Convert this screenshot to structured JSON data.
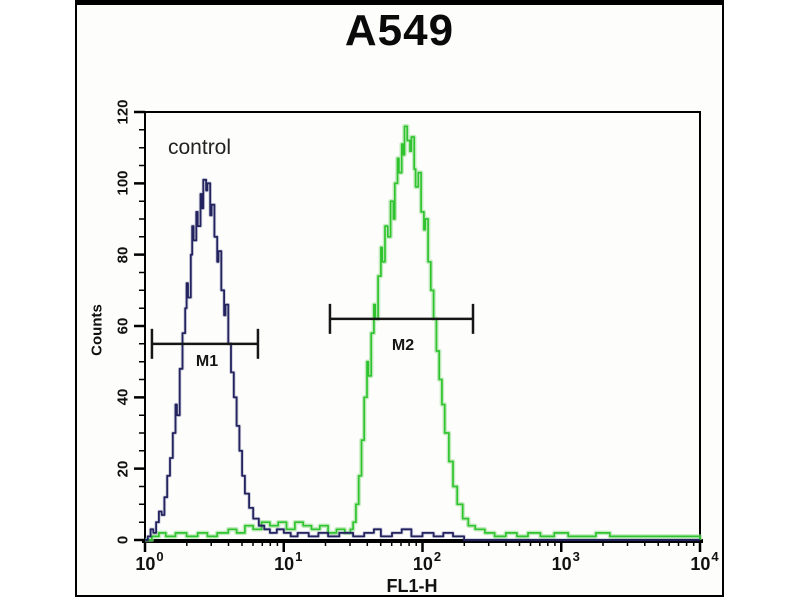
{
  "page": {
    "title": "A549"
  },
  "annotations": {
    "control_label": "control"
  },
  "axes": {
    "x": {
      "label": "FL1-H",
      "scale": "log",
      "tick_base": "10",
      "tick_exponents": [
        0,
        1,
        2,
        3,
        4
      ],
      "min_exp": 0,
      "max_exp": 4
    },
    "y": {
      "label": "Counts",
      "min": 0,
      "max": 120,
      "major_step": 20,
      "minor_step": 5,
      "tick_values": [
        0,
        20,
        40,
        60,
        80,
        100,
        120
      ],
      "tick_labels": [
        "0",
        "20",
        "40",
        "60",
        "80",
        "100",
        "120"
      ]
    }
  },
  "markers": [
    {
      "label": "M1",
      "from_log": 0.05,
      "to_log": 0.814,
      "count": 55
    },
    {
      "label": "M2",
      "from_log": 1.333,
      "to_log": 2.364,
      "count": 62
    }
  ],
  "colors": {
    "control_trace": "#23235f",
    "control_glow": "rgba(40,40,110,0.22)",
    "sample_trace": "#2fc42f",
    "sample_glow": "rgba(150,220,140,0.55)",
    "frame": "#000000",
    "marker": "#161616"
  },
  "chart_data": {
    "type": "line",
    "subtype": "flow-cytometry-histogram",
    "title": "A549",
    "xlabel": "FL1-H",
    "ylabel": "Counts",
    "xscale": "log",
    "xlim": [
      1,
      10000
    ],
    "ylim": [
      0,
      120
    ],
    "grid": false,
    "legend_position": "none",
    "series": [
      {
        "name": "control",
        "color": "#23235f",
        "peak_x": 2.7,
        "peak_y": 101,
        "points_logx_count": [
          [
            0.0,
            0
          ],
          [
            0.02,
            1
          ],
          [
            0.04,
            3
          ],
          [
            0.06,
            2
          ],
          [
            0.08,
            5
          ],
          [
            0.1,
            8
          ],
          [
            0.12,
            7
          ],
          [
            0.14,
            12
          ],
          [
            0.16,
            18
          ],
          [
            0.18,
            23
          ],
          [
            0.2,
            30
          ],
          [
            0.22,
            38
          ],
          [
            0.23,
            35
          ],
          [
            0.25,
            48
          ],
          [
            0.27,
            58
          ],
          [
            0.29,
            65
          ],
          [
            0.3,
            72
          ],
          [
            0.31,
            68
          ],
          [
            0.33,
            80
          ],
          [
            0.34,
            88
          ],
          [
            0.35,
            84
          ],
          [
            0.37,
            92
          ],
          [
            0.38,
            88
          ],
          [
            0.4,
            97
          ],
          [
            0.41,
            93
          ],
          [
            0.42,
            101
          ],
          [
            0.44,
            98
          ],
          [
            0.45,
            100
          ],
          [
            0.47,
            91
          ],
          [
            0.48,
            94
          ],
          [
            0.5,
            85
          ],
          [
            0.52,
            78
          ],
          [
            0.53,
            81
          ],
          [
            0.55,
            70
          ],
          [
            0.57,
            63
          ],
          [
            0.58,
            66
          ],
          [
            0.6,
            55
          ],
          [
            0.62,
            47
          ],
          [
            0.64,
            40
          ],
          [
            0.66,
            32
          ],
          [
            0.68,
            25
          ],
          [
            0.7,
            18
          ],
          [
            0.72,
            13
          ],
          [
            0.75,
            9
          ],
          [
            0.78,
            6
          ],
          [
            0.82,
            4
          ],
          [
            0.86,
            3
          ],
          [
            0.9,
            2
          ],
          [
            0.95,
            3
          ],
          [
            1.0,
            2
          ],
          [
            1.05,
            1
          ],
          [
            1.1,
            2
          ],
          [
            1.18,
            1
          ],
          [
            1.25,
            2
          ],
          [
            1.32,
            1
          ],
          [
            1.4,
            2
          ],
          [
            1.5,
            1
          ],
          [
            1.58,
            2
          ],
          [
            1.65,
            3
          ],
          [
            1.7,
            1
          ],
          [
            1.78,
            2
          ],
          [
            1.85,
            3
          ],
          [
            1.92,
            1
          ],
          [
            2.0,
            2
          ],
          [
            2.08,
            1
          ],
          [
            2.15,
            2
          ],
          [
            2.22,
            1
          ],
          [
            2.3,
            0
          ],
          [
            4.0,
            0
          ]
        ]
      },
      {
        "name": "sample",
        "color": "#2fc42f",
        "peak_x": 74,
        "peak_y": 116,
        "points_logx_count": [
          [
            0.0,
            0
          ],
          [
            0.05,
            1
          ],
          [
            0.1,
            2
          ],
          [
            0.15,
            1
          ],
          [
            0.22,
            2
          ],
          [
            0.3,
            1
          ],
          [
            0.38,
            2
          ],
          [
            0.45,
            1
          ],
          [
            0.52,
            2
          ],
          [
            0.6,
            3
          ],
          [
            0.66,
            2
          ],
          [
            0.72,
            4
          ],
          [
            0.78,
            3
          ],
          [
            0.84,
            5
          ],
          [
            0.9,
            4
          ],
          [
            0.96,
            5
          ],
          [
            1.02,
            3
          ],
          [
            1.08,
            5
          ],
          [
            1.14,
            4
          ],
          [
            1.2,
            3
          ],
          [
            1.26,
            4
          ],
          [
            1.32,
            2
          ],
          [
            1.38,
            3
          ],
          [
            1.44,
            2
          ],
          [
            1.48,
            3
          ],
          [
            1.5,
            5
          ],
          [
            1.52,
            10
          ],
          [
            1.54,
            18
          ],
          [
            1.56,
            28
          ],
          [
            1.58,
            40
          ],
          [
            1.6,
            50
          ],
          [
            1.61,
            46
          ],
          [
            1.63,
            58
          ],
          [
            1.65,
            66
          ],
          [
            1.66,
            62
          ],
          [
            1.68,
            74
          ],
          [
            1.7,
            82
          ],
          [
            1.71,
            78
          ],
          [
            1.73,
            88
          ],
          [
            1.75,
            85
          ],
          [
            1.77,
            95
          ],
          [
            1.79,
            90
          ],
          [
            1.8,
            100
          ],
          [
            1.82,
            107
          ],
          [
            1.83,
            103
          ],
          [
            1.85,
            111
          ],
          [
            1.86,
            108
          ],
          [
            1.87,
            116
          ],
          [
            1.89,
            112
          ],
          [
            1.91,
            109
          ],
          [
            1.92,
            113
          ],
          [
            1.94,
            104
          ],
          [
            1.95,
            99
          ],
          [
            1.97,
            103
          ],
          [
            1.99,
            92
          ],
          [
            2.01,
            87
          ],
          [
            2.02,
            90
          ],
          [
            2.04,
            78
          ],
          [
            2.06,
            70
          ],
          [
            2.08,
            62
          ],
          [
            2.1,
            53
          ],
          [
            2.12,
            45
          ],
          [
            2.14,
            38
          ],
          [
            2.16,
            30
          ],
          [
            2.19,
            22
          ],
          [
            2.22,
            15
          ],
          [
            2.25,
            10
          ],
          [
            2.29,
            6
          ],
          [
            2.33,
            4
          ],
          [
            2.38,
            3
          ],
          [
            2.45,
            2
          ],
          [
            2.52,
            1
          ],
          [
            2.6,
            2
          ],
          [
            2.68,
            1
          ],
          [
            2.76,
            2
          ],
          [
            2.85,
            1
          ],
          [
            2.95,
            2
          ],
          [
            3.05,
            1
          ],
          [
            3.15,
            1
          ],
          [
            3.25,
            2
          ],
          [
            3.35,
            1
          ],
          [
            3.5,
            1
          ],
          [
            3.65,
            1
          ],
          [
            3.8,
            1
          ],
          [
            3.95,
            1
          ],
          [
            4.0,
            0
          ]
        ]
      }
    ]
  }
}
